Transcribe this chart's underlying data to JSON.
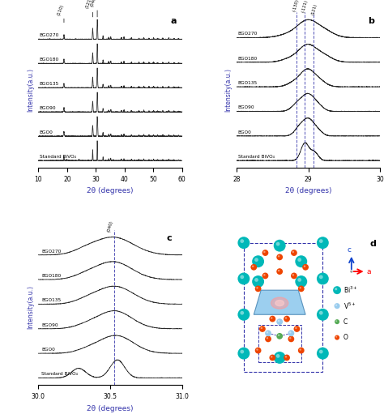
{
  "samples": [
    "BGO270",
    "BGO180",
    "BGO135",
    "BGO90",
    "BGO0",
    "Standard BiVO₄"
  ],
  "panel_a_label": "a",
  "panel_b_label": "b",
  "panel_c_label": "c",
  "panel_d_label": "d",
  "xlabel_a": "2θ (degrees)",
  "xlabel_b": "2θ (degrees)",
  "xlabel_c": "2θ (degrees)",
  "ylabel": "Intensity(a.u.)",
  "xlim_a": [
    10,
    60
  ],
  "xlim_b": [
    28,
    30
  ],
  "xlim_c": [
    30.0,
    31.0
  ],
  "xticks_a": [
    10,
    20,
    30,
    40,
    50,
    60
  ],
  "xticks_b": [
    28,
    29,
    30
  ],
  "xticks_c": [
    30.0,
    30.5,
    31.0
  ],
  "vlines_b": [
    28.83,
    28.95,
    29.07
  ],
  "vline_c": 30.53,
  "vline_labels_b": [
    "(-130)",
    "(-121)",
    "(121)"
  ],
  "bg_color": "#ffffff",
  "line_color": "#2a2a2a",
  "vline_color": "#3333aa",
  "ylabel_color": "#3333aa",
  "xlabel_color": "#3333aa",
  "bi_color": "#00B8B8",
  "v_color": "#99CCEE",
  "c_color": "#55AA55",
  "o_color": "#EE4400"
}
